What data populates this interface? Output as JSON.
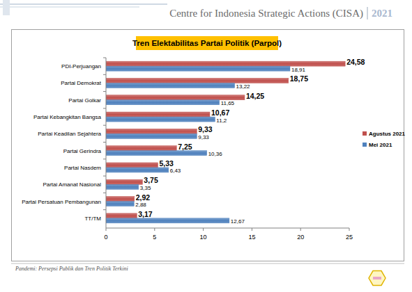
{
  "header": {
    "organization": "Centre for Indonesia Strategic Actions (CISA)",
    "year": "2021"
  },
  "footer": "Pandemi: Persepsi Publik dan Tren Politik Terkini",
  "chart_data": {
    "type": "bar",
    "orientation": "horizontal",
    "title": "Tren Elektabilitas Partai Politik (Parpol)",
    "categories": [
      "PDI-Perjuangan",
      "Partai Demokrat",
      "Partai Golkar",
      "Partai Kebangkitan Bangsa",
      "Partai Keadilan Sejahtera",
      "Partai Gerindra",
      "Partai Nasdem",
      "Partai Amanat Nasional",
      "Partai Persatuan Pembangunan",
      "TT/TM"
    ],
    "series": [
      {
        "name": "Agustus 2021",
        "color": "#c0504d",
        "values": [
          24.58,
          18.75,
          14.25,
          10.67,
          9.33,
          7.25,
          5.33,
          3.75,
          2.92,
          3.17
        ],
        "value_labels": [
          "24,58",
          "18,75",
          "14,25",
          "10,67",
          "9,33",
          "7,25",
          "5,33",
          "3,75",
          "2,92",
          "3,17"
        ]
      },
      {
        "name": "Mei 2021",
        "color": "#4f81bd",
        "values": [
          18.91,
          13.22,
          11.65,
          11.2,
          9.33,
          10.36,
          6.43,
          3.35,
          2.88,
          12.67
        ],
        "value_labels": [
          "18,91",
          "13,22",
          "11,65",
          "11,2",
          "9,33",
          "10,36",
          "6,43",
          "3,35",
          "2,88",
          "12,67"
        ]
      }
    ],
    "xlim": [
      0,
      25
    ],
    "xticks": [
      0,
      5,
      10,
      15,
      20,
      25
    ],
    "grid": false,
    "legend": "right",
    "data_labels": true
  }
}
